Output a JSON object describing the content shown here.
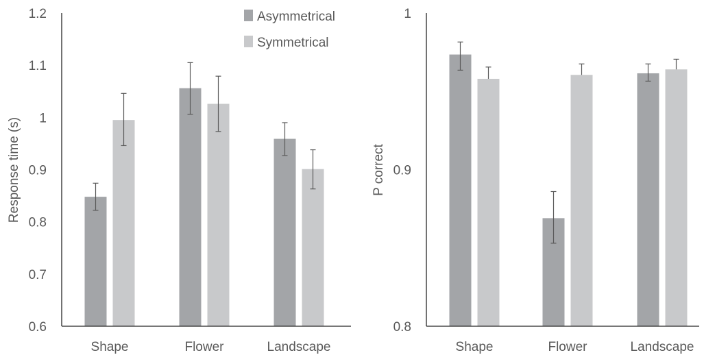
{
  "colors": {
    "asymmetrical": "#a3a5a8",
    "symmetrical": "#c8c9cb",
    "axis": "#262626",
    "text": "#595959"
  },
  "legend": [
    {
      "label": "Asymmetrical",
      "color": "#a3a5a8"
    },
    {
      "label": "Symmetrical",
      "color": "#c8c9cb"
    }
  ],
  "chart_data": [
    {
      "type": "bar",
      "categories": [
        "Shape",
        "Flower",
        "Landscape"
      ],
      "ylabel": "Response time (s)",
      "xlabel": "",
      "title": "",
      "ylim": [
        0.6,
        1.2
      ],
      "yticks": [
        "0.6",
        "0.7",
        "0.8",
        "0.9",
        "1",
        "1.1",
        "1.2"
      ],
      "series": [
        {
          "name": "Asymmetrical",
          "values": [
            0.848,
            1.056,
            0.959
          ],
          "err_low": [
            0.822,
            1.006,
            0.927
          ],
          "err_high": [
            0.874,
            1.105,
            0.99
          ]
        },
        {
          "name": "Symmetrical",
          "values": [
            0.995,
            1.026,
            0.901
          ],
          "err_low": [
            0.946,
            0.973,
            0.863
          ],
          "err_high": [
            1.046,
            1.079,
            0.938
          ]
        }
      ]
    },
    {
      "type": "bar",
      "categories": [
        "Shape",
        "Flower",
        "Landscape"
      ],
      "ylabel": "P correct",
      "xlabel": "",
      "title": "",
      "ylim": [
        0.8,
        1.0
      ],
      "yticks": [
        "0.8",
        "0.9",
        "1"
      ],
      "series": [
        {
          "name": "Asymmetrical",
          "values": [
            0.9735,
            0.869,
            0.9615
          ],
          "err_low": [
            0.9635,
            0.853,
            0.9565
          ],
          "err_high": [
            0.9815,
            0.886,
            0.9675
          ]
        },
        {
          "name": "Symmetrical",
          "values": [
            0.958,
            0.9605,
            0.964
          ],
          "err_low": [
            0.958,
            0.9605,
            0.964
          ],
          "err_high": [
            0.9655,
            0.9675,
            0.9705
          ]
        }
      ]
    }
  ]
}
